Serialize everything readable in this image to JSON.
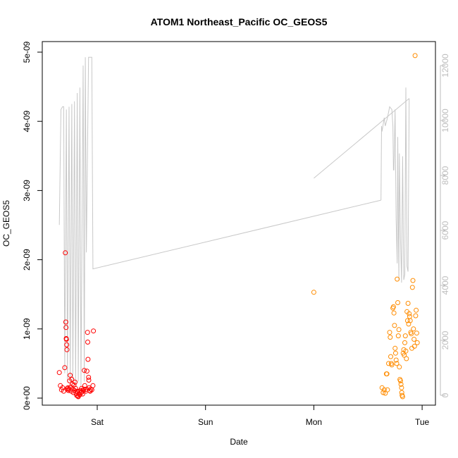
{
  "chart_data": {
    "type": "scatter",
    "title": "ATOM1 Northeast_Pacific OC_GEOS5",
    "xlabel": "Date",
    "ylabel": "OC_GEOS5",
    "x_ticks": [
      "Sat",
      "Sun",
      "Mon",
      "Tue"
    ],
    "x_tick_days": [
      1,
      2,
      3,
      4
    ],
    "xlim_days": [
      0.6,
      4.1
    ],
    "ylim": [
      0,
      5.1e-09
    ],
    "y_ticks": [
      0,
      1e-09,
      2e-09,
      3e-09,
      4e-09,
      5e-09
    ],
    "y_tick_labels": [
      "0e+00",
      "1e-09",
      "2e-09",
      "3e-09",
      "4e-09",
      "5e-09"
    ],
    "y2lim": [
      0,
      12700
    ],
    "y2_ticks": [
      0,
      2000,
      4000,
      6000,
      8000,
      10000,
      12000
    ],
    "y2_tick_labels": [
      "0",
      "2000",
      "4000",
      "6000",
      "8000",
      "10000",
      "12000"
    ],
    "grid": false,
    "colors": {
      "series1": "#ff0000",
      "series2": "#ff8c00",
      "altitude": "#c8c8c8",
      "right_axis": "#bdbdbd"
    },
    "series": [
      {
        "color": "#ff0000",
        "marker": "circle-open",
        "points": [
          [
            0.65,
            3.7e-10
          ],
          [
            0.66,
            1.8e-10
          ],
          [
            0.67,
            1.2e-10
          ],
          [
            0.68,
            1.5e-10
          ],
          [
            0.69,
            1e-10
          ],
          [
            0.7,
            4.4e-10
          ],
          [
            0.705,
            2.1e-09
          ],
          [
            0.71,
            1.1e-09
          ],
          [
            0.712,
            1.02e-09
          ],
          [
            0.714,
            8.6e-10
          ],
          [
            0.716,
            8.5e-10
          ],
          [
            0.718,
            7.7e-10
          ],
          [
            0.72,
            7e-10
          ],
          [
            0.722,
            1.4e-10
          ],
          [
            0.725,
            1.2e-10
          ],
          [
            0.73,
            1.5e-10
          ],
          [
            0.735,
            1.1e-10
          ],
          [
            0.74,
            1.3e-10
          ],
          [
            0.745,
            2.5e-10
          ],
          [
            0.75,
            3.3e-10
          ],
          [
            0.755,
            1.6e-10
          ],
          [
            0.76,
            1e-10
          ],
          [
            0.765,
            2.7e-10
          ],
          [
            0.77,
            2e-10
          ],
          [
            0.775,
            1.3e-10
          ],
          [
            0.78,
            8e-11
          ],
          [
            0.785,
            1.9e-10
          ],
          [
            0.79,
            1.1e-10
          ],
          [
            0.795,
            2.3e-10
          ],
          [
            0.8,
            1.4e-10
          ],
          [
            0.805,
            7e-11
          ],
          [
            0.81,
            4e-11
          ],
          [
            0.815,
            1e-10
          ],
          [
            0.82,
            3e-11
          ],
          [
            0.825,
            2e-11
          ],
          [
            0.83,
            6e-11
          ],
          [
            0.835,
            1e-10
          ],
          [
            0.84,
            5e-11
          ],
          [
            0.845,
            1.1e-10
          ],
          [
            0.85,
            8e-11
          ],
          [
            0.855,
            1.4e-10
          ],
          [
            0.86,
            9e-11
          ],
          [
            0.865,
            6e-11
          ],
          [
            0.87,
            1.1e-10
          ],
          [
            0.875,
            1.3e-10
          ],
          [
            0.88,
            4e-10
          ],
          [
            0.885,
            1.8e-10
          ],
          [
            0.89,
            1.2e-10
          ],
          [
            0.895,
            1e-10
          ],
          [
            0.9,
            1.3e-10
          ],
          [
            0.905,
            3.9e-10
          ],
          [
            0.91,
            9.5e-10
          ],
          [
            0.912,
            8.1e-10
          ],
          [
            0.915,
            5.6e-10
          ],
          [
            0.92,
            3e-10
          ],
          [
            0.922,
            2.6e-10
          ],
          [
            0.925,
            1.5e-10
          ],
          [
            0.93,
            1.1e-10
          ],
          [
            0.935,
            1e-10
          ],
          [
            0.94,
            1.3e-10
          ],
          [
            0.95,
            1.2e-10
          ],
          [
            0.96,
            1.8e-10
          ],
          [
            0.965,
            9.7e-10
          ]
        ]
      },
      {
        "color": "#ff8c00",
        "marker": "circle-open",
        "points": [
          [
            3.0,
            1.53e-09
          ],
          [
            3.63,
            1.5e-10
          ],
          [
            3.64,
            8e-11
          ],
          [
            3.65,
            1.2e-10
          ],
          [
            3.66,
            7e-11
          ],
          [
            3.67,
            3.5e-10
          ],
          [
            3.675,
            3.5e-10
          ],
          [
            3.68,
            1.2e-10
          ],
          [
            3.69,
            5e-10
          ],
          [
            3.7,
            9.5e-10
          ],
          [
            3.705,
            8.8e-10
          ],
          [
            3.71,
            6e-10
          ],
          [
            3.715,
            5e-10
          ],
          [
            3.72,
            4.8e-10
          ],
          [
            3.73,
            1.3e-09
          ],
          [
            3.735,
            1.32e-09
          ],
          [
            3.74,
            1.23e-09
          ],
          [
            3.745,
            1.05e-09
          ],
          [
            3.75,
            7.2e-10
          ],
          [
            3.755,
            6.5e-10
          ],
          [
            3.76,
            5.5e-10
          ],
          [
            3.765,
            5e-10
          ],
          [
            3.77,
            1.72e-09
          ],
          [
            3.775,
            1.38e-09
          ],
          [
            3.78,
            9e-10
          ],
          [
            3.785,
            9.9e-10
          ],
          [
            3.79,
            4.5e-10
          ],
          [
            3.795,
            2.7e-10
          ],
          [
            3.8,
            2.5e-10
          ],
          [
            3.805,
            2e-10
          ],
          [
            3.81,
            1.5e-10
          ],
          [
            3.812,
            8e-11
          ],
          [
            3.815,
            4e-11
          ],
          [
            3.82,
            2e-11
          ],
          [
            3.825,
            6.5e-10
          ],
          [
            3.83,
            7e-10
          ],
          [
            3.835,
            6.2e-10
          ],
          [
            3.84,
            8e-10
          ],
          [
            3.845,
            9e-10
          ],
          [
            3.85,
            6.8e-10
          ],
          [
            3.855,
            5.7e-10
          ],
          [
            3.86,
            1.25e-09
          ],
          [
            3.865,
            1.12e-09
          ],
          [
            3.87,
            1.37e-09
          ],
          [
            3.875,
            1.07e-09
          ],
          [
            3.88,
            1.22e-09
          ],
          [
            3.885,
            1.18e-09
          ],
          [
            3.89,
            1.12e-09
          ],
          [
            3.895,
            9.5e-10
          ],
          [
            3.9,
            9.3e-10
          ],
          [
            3.905,
            7.2e-10
          ],
          [
            3.91,
            1.6e-09
          ],
          [
            3.915,
            1.7e-09
          ],
          [
            3.92,
            1e-09
          ],
          [
            3.925,
            8.5e-10
          ],
          [
            3.93,
            7.5e-10
          ],
          [
            3.935,
            4.95e-09
          ],
          [
            3.94,
            1.19e-09
          ],
          [
            3.945,
            1.27e-09
          ],
          [
            3.95,
            9.4e-10
          ],
          [
            3.955,
            8e-10
          ]
        ]
      }
    ],
    "altitude_line": [
      [
        0.65,
        6200
      ],
      [
        0.665,
        10400
      ],
      [
        0.68,
        10500
      ],
      [
        0.69,
        10500
      ],
      [
        0.7,
        800
      ],
      [
        0.715,
        10400
      ],
      [
        0.725,
        500
      ],
      [
        0.74,
        10500
      ],
      [
        0.75,
        500
      ],
      [
        0.765,
        10600
      ],
      [
        0.775,
        500
      ],
      [
        0.79,
        10700
      ],
      [
        0.8,
        300
      ],
      [
        0.815,
        11000
      ],
      [
        0.825,
        500
      ],
      [
        0.84,
        11200
      ],
      [
        0.85,
        300
      ],
      [
        0.87,
        12000
      ],
      [
        0.88,
        500
      ],
      [
        0.89,
        12300
      ],
      [
        0.9,
        5200
      ],
      [
        0.92,
        12300
      ],
      [
        0.95,
        12300
      ],
      [
        0.96,
        4600
      ],
      [
        3.62,
        7100
      ],
      [
        3.625,
        9800
      ],
      [
        3.63,
        9600
      ],
      [
        3.65,
        10100
      ],
      [
        3.66,
        9800
      ],
      [
        3.68,
        10100
      ],
      [
        3.7,
        10500
      ],
      [
        3.72,
        10400
      ],
      [
        3.73,
        9800
      ],
      [
        3.735,
        8200
      ],
      [
        3.74,
        8200
      ],
      [
        3.75,
        10400
      ],
      [
        3.76,
        6400
      ],
      [
        3.77,
        4800
      ],
      [
        3.775,
        9400
      ],
      [
        3.78,
        6300
      ],
      [
        3.785,
        4200
      ],
      [
        3.79,
        8800
      ],
      [
        3.8,
        5700
      ],
      [
        3.81,
        4100
      ],
      [
        3.82,
        8700
      ],
      [
        3.83,
        4200
      ],
      [
        3.84,
        4400
      ],
      [
        3.85,
        11200
      ],
      [
        3.86,
        4700
      ],
      [
        3.87,
        4500
      ],
      [
        3.88,
        10800
      ]
    ],
    "altitude_line2": [
      [
        3.0,
        7900
      ],
      [
        3.88,
        10800
      ]
    ]
  }
}
